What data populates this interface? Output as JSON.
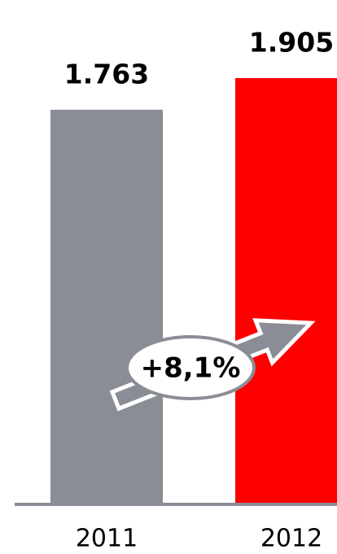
{
  "chart_data": {
    "type": "bar",
    "categories": [
      "2011",
      "2012"
    ],
    "values": [
      1763,
      1905
    ],
    "value_labels": [
      "1.763",
      "1.905"
    ],
    "colors": [
      "#8a8d96",
      "#ff0000"
    ],
    "annotation": "+8,1%"
  }
}
